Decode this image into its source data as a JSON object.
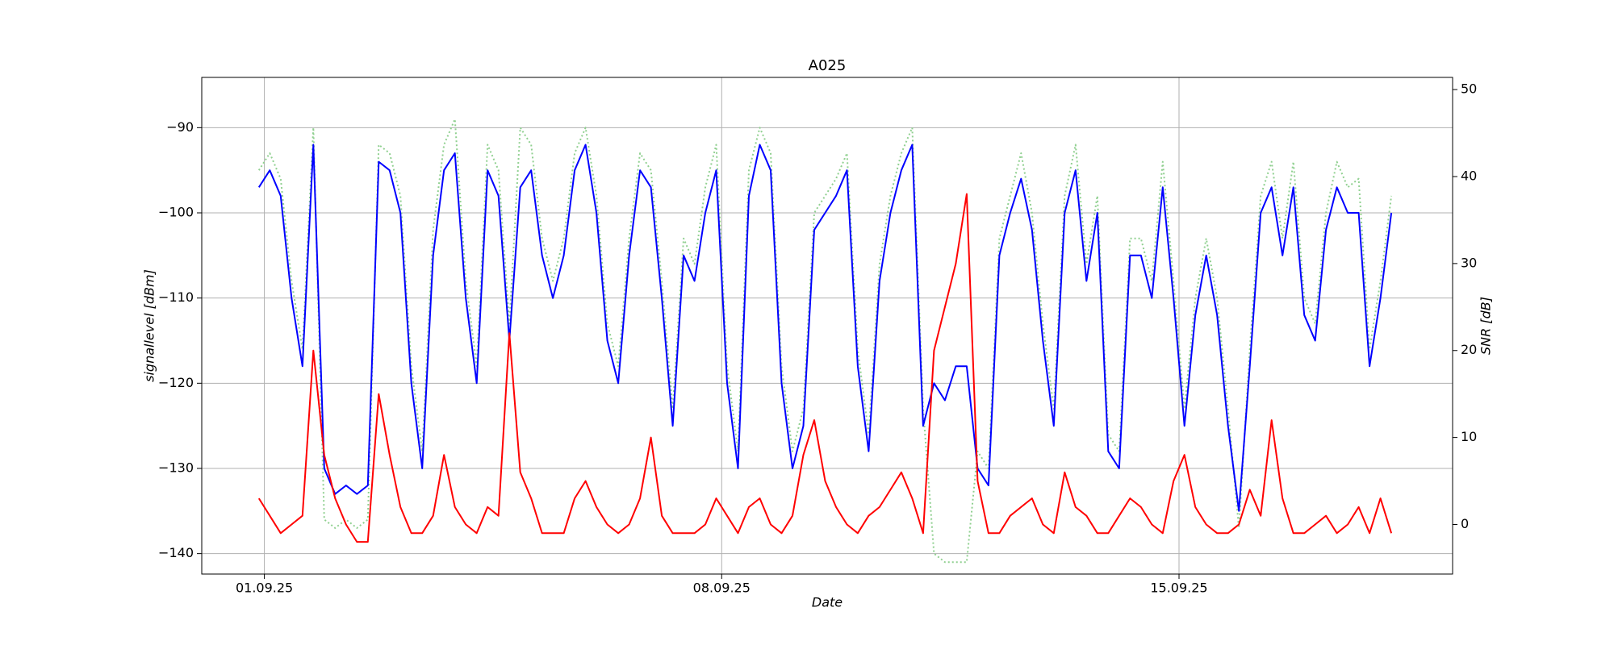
{
  "chart_data": {
    "type": "line",
    "title": "A025",
    "xlabel": "Date",
    "ylabel": "signallevel [dBm]",
    "y2label": "SNR [dB]",
    "grid": true,
    "xlim": [
      "2025-08-31T01:00",
      "2025-09-19T04:30"
    ],
    "xticks": [
      {
        "value": "2025-09-01T00:00",
        "label": "01.09.25"
      },
      {
        "value": "2025-09-08T00:00",
        "label": "08.09.25"
      },
      {
        "value": "2025-09-15T00:00",
        "label": "15.09.25"
      }
    ],
    "ylim": [
      -142.4,
      -84.1
    ],
    "yticks": [
      {
        "value": -90,
        "label": "−90"
      },
      {
        "value": -100,
        "label": "−100"
      },
      {
        "value": -110,
        "label": "−110"
      },
      {
        "value": -120,
        "label": "−120"
      },
      {
        "value": -130,
        "label": "−130"
      },
      {
        "value": -140,
        "label": "−140"
      }
    ],
    "y2lim": [
      -5.7,
      51.4
    ],
    "y2ticks": [
      0,
      10,
      20,
      30,
      40,
      50
    ],
    "x": [
      "2025-08-31T22:00",
      "2025-09-01T02:00",
      "2025-09-01T06:00",
      "2025-09-01T10:00",
      "2025-09-01T14:00",
      "2025-09-01T18:00",
      "2025-09-01T22:00",
      "2025-09-02T02:00",
      "2025-09-02T06:00",
      "2025-09-02T10:00",
      "2025-09-02T14:00",
      "2025-09-02T18:00",
      "2025-09-02T22:00",
      "2025-09-03T02:00",
      "2025-09-03T06:00",
      "2025-09-03T10:00",
      "2025-09-03T14:00",
      "2025-09-03T18:00",
      "2025-09-03T22:00",
      "2025-09-04T02:00",
      "2025-09-04T06:00",
      "2025-09-04T10:00",
      "2025-09-04T14:00",
      "2025-09-04T18:00",
      "2025-09-04T22:00",
      "2025-09-05T02:00",
      "2025-09-05T06:00",
      "2025-09-05T10:00",
      "2025-09-05T14:00",
      "2025-09-05T18:00",
      "2025-09-05T22:00",
      "2025-09-06T02:00",
      "2025-09-06T06:00",
      "2025-09-06T10:00",
      "2025-09-06T14:00",
      "2025-09-06T18:00",
      "2025-09-06T22:00",
      "2025-09-07T02:00",
      "2025-09-07T06:00",
      "2025-09-07T10:00",
      "2025-09-07T14:00",
      "2025-09-07T18:00",
      "2025-09-07T22:00",
      "2025-09-08T02:00",
      "2025-09-08T06:00",
      "2025-09-08T10:00",
      "2025-09-08T14:00",
      "2025-09-08T18:00",
      "2025-09-08T22:00",
      "2025-09-09T02:00",
      "2025-09-09T06:00",
      "2025-09-09T10:00",
      "2025-09-09T14:00",
      "2025-09-09T18:00",
      "2025-09-09T22:00",
      "2025-09-10T02:00",
      "2025-09-10T06:00",
      "2025-09-10T10:00",
      "2025-09-10T14:00",
      "2025-09-10T18:00",
      "2025-09-10T22:00",
      "2025-09-11T02:00",
      "2025-09-11T06:00",
      "2025-09-11T10:00",
      "2025-09-11T14:00",
      "2025-09-11T18:00",
      "2025-09-11T22:00",
      "2025-09-12T02:00",
      "2025-09-12T06:00",
      "2025-09-12T10:00",
      "2025-09-12T14:00",
      "2025-09-12T18:00",
      "2025-09-12T22:00",
      "2025-09-13T02:00",
      "2025-09-13T06:00",
      "2025-09-13T10:00",
      "2025-09-13T14:00",
      "2025-09-13T18:00",
      "2025-09-13T22:00",
      "2025-09-14T02:00",
      "2025-09-14T06:00",
      "2025-09-14T10:00",
      "2025-09-14T14:00",
      "2025-09-14T18:00",
      "2025-09-14T22:00",
      "2025-09-15T02:00",
      "2025-09-15T06:00",
      "2025-09-15T10:00",
      "2025-09-15T14:00",
      "2025-09-15T18:00",
      "2025-09-15T22:00",
      "2025-09-16T02:00",
      "2025-09-16T06:00",
      "2025-09-16T10:00",
      "2025-09-16T14:00",
      "2025-09-16T18:00",
      "2025-09-16T22:00",
      "2025-09-17T02:00",
      "2025-09-17T06:00",
      "2025-09-17T10:00",
      "2025-09-17T14:00",
      "2025-09-17T18:00",
      "2025-09-17T22:00",
      "2025-09-18T02:00",
      "2025-09-18T06:00"
    ],
    "series": [
      {
        "color": "#90d090",
        "linestyle": "dotted",
        "axis": "y",
        "values": [
          -95,
          -93,
          -96,
          -108,
          -116,
          -90,
          -136,
          -137,
          -136,
          -137,
          -136,
          -92,
          -93,
          -98,
          -118,
          -128,
          -102,
          -92,
          -89,
          -108,
          -118,
          -92,
          -95,
          -113,
          -90,
          -92,
          -103,
          -108,
          -103,
          -93,
          -90,
          -98,
          -113,
          -118,
          -103,
          -93,
          -95,
          -108,
          -123,
          -103,
          -106,
          -97,
          -92,
          -118,
          -128,
          -95,
          -90,
          -93,
          -118,
          -128,
          -123,
          -100,
          -98,
          -96,
          -93,
          -116,
          -126,
          -106,
          -98,
          -93,
          -90,
          -123,
          -140,
          -141,
          -141,
          -141,
          -128,
          -130,
          -103,
          -98,
          -93,
          -100,
          -113,
          -123,
          -98,
          -92,
          -106,
          -98,
          -126,
          -128,
          -103,
          -103,
          -108,
          -94,
          -108,
          -123,
          -110,
          -103,
          -110,
          -123,
          -137,
          -116,
          -98,
          -94,
          -103,
          -94,
          -110,
          -113,
          -100,
          -94,
          -97,
          -96,
          -116,
          -108,
          -98
        ]
      },
      {
        "color": "#0000ff",
        "linestyle": "solid",
        "axis": "y",
        "values": [
          -97,
          -95,
          -98,
          -110,
          -118,
          -92,
          -130,
          -133,
          -132,
          -133,
          -132,
          -94,
          -95,
          -100,
          -120,
          -130,
          -105,
          -95,
          -93,
          -110,
          -120,
          -95,
          -98,
          -115,
          -97,
          -95,
          -105,
          -110,
          -105,
          -95,
          -92,
          -100,
          -115,
          -120,
          -105,
          -95,
          -97,
          -110,
          -125,
          -105,
          -108,
          -100,
          -95,
          -120,
          -130,
          -98,
          -92,
          -95,
          -120,
          -130,
          -125,
          -102,
          -100,
          -98,
          -95,
          -118,
          -128,
          -108,
          -100,
          -95,
          -92,
          -125,
          -120,
          -122,
          -118,
          -118,
          -130,
          -132,
          -105,
          -100,
          -96,
          -102,
          -115,
          -125,
          -100,
          -95,
          -108,
          -100,
          -128,
          -130,
          -105,
          -105,
          -110,
          -97,
          -110,
          -125,
          -112,
          -105,
          -112,
          -125,
          -135,
          -118,
          -100,
          -97,
          -105,
          -97,
          -112,
          -115,
          -102,
          -97,
          -100,
          -100,
          -118,
          -110,
          -100
        ]
      },
      {
        "color": "#ff0000",
        "linestyle": "solid",
        "axis": "y2",
        "values": [
          3,
          1,
          -1,
          0,
          1,
          20,
          8,
          3,
          0,
          -2,
          -2,
          15,
          8,
          2,
          -1,
          -1,
          1,
          8,
          2,
          0,
          -1,
          2,
          1,
          22,
          6,
          3,
          -1,
          -1,
          -1,
          3,
          5,
          2,
          0,
          -1,
          0,
          3,
          10,
          1,
          -1,
          -1,
          -1,
          0,
          3,
          1,
          -1,
          2,
          3,
          0,
          -1,
          1,
          8,
          12,
          5,
          2,
          0,
          -1,
          1,
          2,
          4,
          6,
          3,
          -1,
          20,
          25,
          30,
          38,
          5,
          -1,
          -1,
          1,
          2,
          3,
          0,
          -1,
          6,
          2,
          1,
          -1,
          -1,
          1,
          3,
          2,
          0,
          -1,
          5,
          8,
          2,
          0,
          -1,
          -1,
          0,
          4,
          1,
          12,
          3,
          -1,
          -1,
          0,
          1,
          -1,
          0,
          2,
          -1,
          3,
          -1
        ]
      }
    ]
  }
}
